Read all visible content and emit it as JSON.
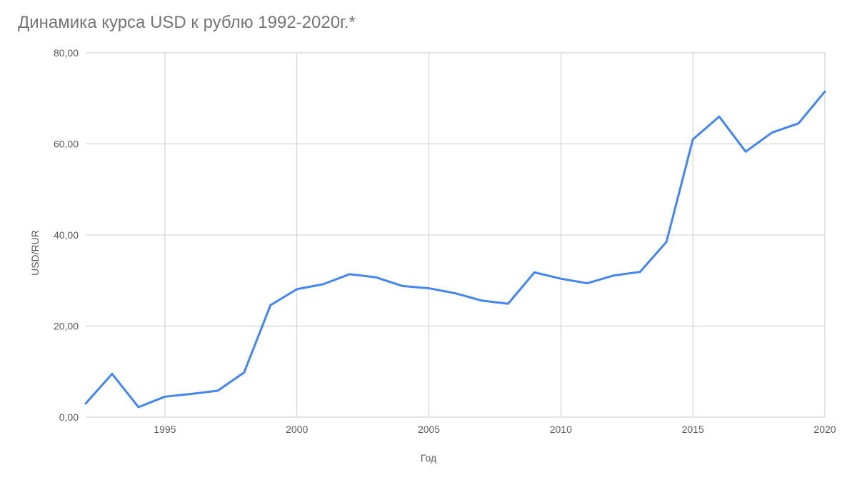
{
  "chart": {
    "type": "line",
    "title": "Динамика курса USD к рублю 1992-2020г.*",
    "title_fontsize": 24,
    "title_color": "#757575",
    "xlabel": "Год",
    "ylabel": "USD/RUR",
    "label_fontsize": 14,
    "label_color": "#595959",
    "background_color": "#ffffff",
    "grid_color": "#cccccc",
    "line_color": "#4285f4",
    "line_width": 3,
    "tick_color": "#595959",
    "tick_fontsize": 14,
    "xlim": [
      1992,
      2020
    ],
    "ylim": [
      0,
      80
    ],
    "ytick_step": 20,
    "xtick_step": 5,
    "ytick_labels": [
      "0,00",
      "20,00",
      "40,00",
      "60,00",
      "80,00"
    ],
    "xtick_labels": [
      "1995",
      "2000",
      "2005",
      "2010",
      "2015",
      "2020"
    ],
    "xtick_values": [
      1995,
      2000,
      2005,
      2010,
      2015,
      2020
    ],
    "x_values": [
      1992,
      1993,
      1994,
      1995,
      1996,
      1997,
      1998,
      1999,
      2000,
      2001,
      2002,
      2003,
      2004,
      2005,
      2006,
      2007,
      2008,
      2009,
      2010,
      2011,
      2012,
      2013,
      2014,
      2015,
      2016,
      2017,
      2018,
      2019,
      2020
    ],
    "y_values": [
      3.0,
      9.5,
      2.2,
      4.5,
      5.1,
      5.8,
      9.8,
      24.6,
      28.1,
      29.2,
      31.4,
      30.7,
      28.8,
      28.3,
      27.2,
      25.6,
      24.9,
      31.8,
      30.4,
      29.4,
      31.1,
      31.9,
      38.5,
      61.0,
      66.0,
      58.3,
      62.5,
      64.5,
      71.5
    ]
  }
}
